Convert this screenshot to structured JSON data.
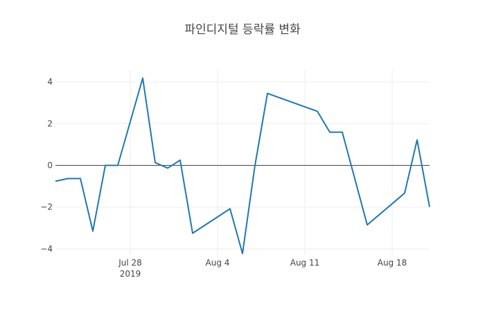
{
  "chart_data": {
    "type": "line",
    "title": "파인디지털 등락률 변화",
    "xlabel": "",
    "ylabel": "",
    "x_ticks": [
      {
        "date": "2019-07-28",
        "label": "Jul 28",
        "sublabel": "2019"
      },
      {
        "date": "2019-08-04",
        "label": "Aug 4",
        "sublabel": ""
      },
      {
        "date": "2019-08-11",
        "label": "Aug 11",
        "sublabel": ""
      },
      {
        "date": "2019-08-18",
        "label": "Aug 18",
        "sublabel": ""
      }
    ],
    "y_ticks": [
      {
        "value": -4,
        "label": "−4"
      },
      {
        "value": -2,
        "label": "−2"
      },
      {
        "value": 0,
        "label": "0"
      },
      {
        "value": 2,
        "label": "2"
      },
      {
        "value": 4,
        "label": "4"
      }
    ],
    "xlim": [
      "2019-07-22",
      "2019-08-21"
    ],
    "ylim": [
      -4.3,
      4.6
    ],
    "grid": true,
    "zero_line": true,
    "line_color": "#1f77b4",
    "series": [
      {
        "points": [
          {
            "x": "2019-07-22",
            "y": -0.76
          },
          {
            "x": "2019-07-23",
            "y": -0.63
          },
          {
            "x": "2019-07-24",
            "y": -0.63
          },
          {
            "x": "2019-07-25",
            "y": -3.15
          },
          {
            "x": "2019-07-26",
            "y": 0.0
          },
          {
            "x": "2019-07-27",
            "y": 0.0
          },
          {
            "x": "2019-07-29",
            "y": 4.18
          },
          {
            "x": "2019-07-30",
            "y": 0.13
          },
          {
            "x": "2019-07-31",
            "y": -0.13
          },
          {
            "x": "2019-08-01",
            "y": 0.25
          },
          {
            "x": "2019-08-02",
            "y": -3.25
          },
          {
            "x": "2019-08-05",
            "y": -2.08
          },
          {
            "x": "2019-08-06",
            "y": -4.22
          },
          {
            "x": "2019-08-07",
            "y": 0.0
          },
          {
            "x": "2019-08-08",
            "y": 3.45
          },
          {
            "x": "2019-08-12",
            "y": 2.59
          },
          {
            "x": "2019-08-13",
            "y": 1.59
          },
          {
            "x": "2019-08-14",
            "y": 1.59
          },
          {
            "x": "2019-08-16",
            "y": -2.85
          },
          {
            "x": "2019-08-19",
            "y": -1.33
          },
          {
            "x": "2019-08-20",
            "y": 1.22
          },
          {
            "x": "2019-08-21",
            "y": -1.99
          }
        ]
      }
    ]
  }
}
